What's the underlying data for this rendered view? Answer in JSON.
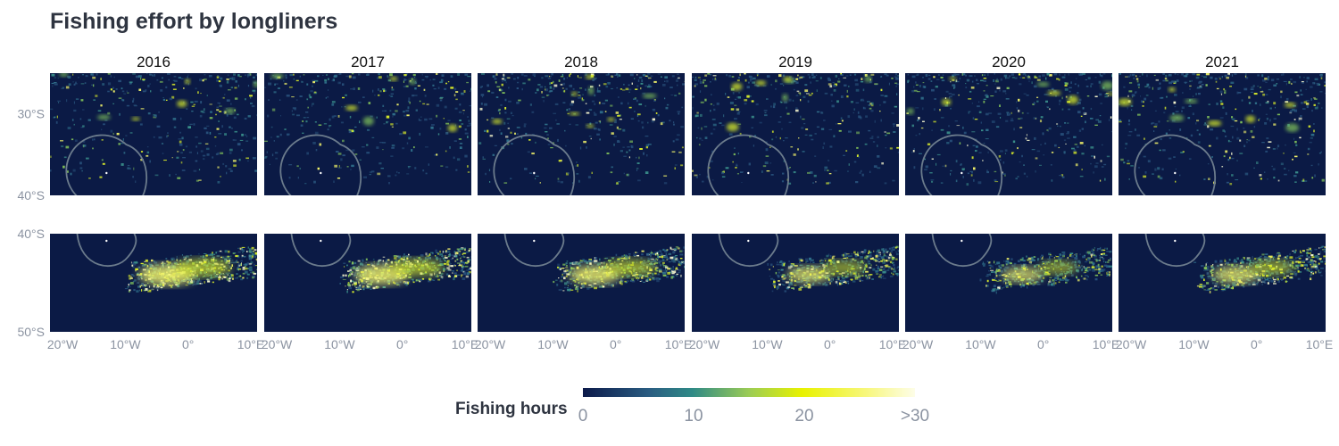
{
  "chart_data": {
    "type": "heatmap",
    "title": "Fishing effort by longliners",
    "years": [
      "2016",
      "2017",
      "2018",
      "2019",
      "2020",
      "2021"
    ],
    "rows": [
      {
        "name": "north",
        "lat_ticks": [
          "30°S",
          "40°S"
        ],
        "lat_values": [
          -30,
          -40
        ]
      },
      {
        "name": "south",
        "lat_ticks": [
          "40°S",
          "50°S"
        ],
        "lat_values": [
          -40,
          -50
        ]
      }
    ],
    "x_ticks": [
      "20°W",
      "10°W",
      "0°",
      "10°E"
    ],
    "x_values": [
      -20,
      -10,
      0,
      10
    ],
    "legend": {
      "title": "Fishing hours",
      "ticks": [
        "0",
        "10",
        "20",
        ">30"
      ],
      "tick_values": [
        0,
        10,
        20,
        30
      ],
      "colors": [
        "#0c1a4a",
        "#2f8a86",
        "#e8f200",
        "#fdfde8"
      ]
    },
    "background_color": "#0b1a45",
    "boundary_color": "#6b7b8c",
    "panel_effort": {
      "north": [
        {
          "year": "2016",
          "level": 0.35
        },
        {
          "year": "2017",
          "level": 0.3
        },
        {
          "year": "2018",
          "level": 0.45
        },
        {
          "year": "2019",
          "level": 0.4
        },
        {
          "year": "2020",
          "level": 0.5
        },
        {
          "year": "2021",
          "level": 0.5
        }
      ],
      "south": [
        {
          "year": "2016",
          "level": 0.85
        },
        {
          "year": "2017",
          "level": 0.8
        },
        {
          "year": "2018",
          "level": 0.75
        },
        {
          "year": "2019",
          "level": 0.6
        },
        {
          "year": "2020",
          "level": 0.55
        },
        {
          "year": "2021",
          "level": 0.65
        }
      ]
    }
  }
}
